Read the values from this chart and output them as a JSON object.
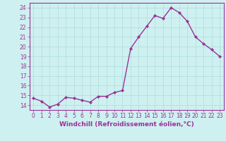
{
  "x": [
    0,
    1,
    2,
    3,
    4,
    5,
    6,
    7,
    8,
    9,
    10,
    11,
    12,
    13,
    14,
    15,
    16,
    17,
    18,
    19,
    20,
    21,
    22,
    23
  ],
  "y": [
    14.7,
    14.4,
    13.8,
    14.1,
    14.8,
    14.7,
    14.5,
    14.3,
    14.9,
    14.9,
    15.3,
    15.5,
    19.8,
    21.0,
    22.1,
    23.2,
    22.9,
    24.0,
    23.5,
    22.6,
    21.0,
    20.3,
    19.7,
    19.0
  ],
  "line_color": "#993399",
  "marker": "D",
  "marker_size": 2.0,
  "bg_color": "#cff0f0",
  "grid_color": "#aadddd",
  "xlabel": "Windchill (Refroidissement éolien,°C)",
  "ylim": [
    13.5,
    24.5
  ],
  "xlim": [
    -0.5,
    23.5
  ],
  "yticks": [
    14,
    15,
    16,
    17,
    18,
    19,
    20,
    21,
    22,
    23,
    24
  ],
  "xticks": [
    0,
    1,
    2,
    3,
    4,
    5,
    6,
    7,
    8,
    9,
    10,
    11,
    12,
    13,
    14,
    15,
    16,
    17,
    18,
    19,
    20,
    21,
    22,
    23
  ],
  "tick_color": "#993399",
  "tick_fontsize": 5.5,
  "xlabel_fontsize": 6.5,
  "line_width": 1.0
}
